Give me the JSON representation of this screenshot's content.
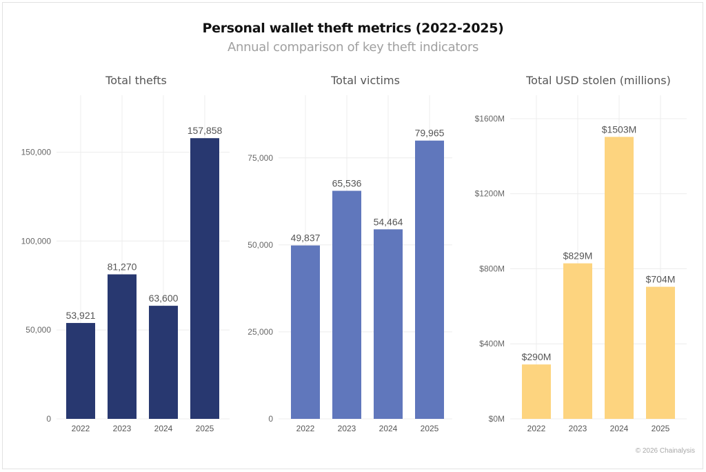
{
  "title": "Personal wallet theft metrics (2022-2025)",
  "subtitle": "Annual comparison of key theft indicators",
  "credit": "© 2026 Chainalysis",
  "chart_data": [
    {
      "type": "bar",
      "title": "Total thefts",
      "categories": [
        "2022",
        "2023",
        "2024",
        "2025"
      ],
      "values": [
        53921,
        81270,
        63600,
        157858
      ],
      "data_labels": [
        "53,921",
        "81,270",
        "63,600",
        "157,858"
      ],
      "ylim": [
        0,
        182000
      ],
      "yticks": [
        0,
        50000,
        100000,
        150000
      ],
      "ytick_labels": [
        "0",
        "50,000",
        "100,000",
        "150,000"
      ],
      "color": "#283870",
      "grid": true
    },
    {
      "type": "bar",
      "title": "Total victims",
      "categories": [
        "2022",
        "2023",
        "2024",
        "2025"
      ],
      "values": [
        49837,
        65536,
        54464,
        79965
      ],
      "data_labels": [
        "49,837",
        "65,536",
        "54,464",
        "79,965"
      ],
      "ylim": [
        0,
        93000
      ],
      "yticks": [
        0,
        25000,
        50000,
        75000
      ],
      "ytick_labels": [
        "0",
        "25,000",
        "50,000",
        "75,000"
      ],
      "color": "#6077bc",
      "grid": true
    },
    {
      "type": "bar",
      "title": "Total USD stolen (millions)",
      "categories": [
        "2022",
        "2023",
        "2024",
        "2025"
      ],
      "values": [
        290,
        829,
        1503,
        704
      ],
      "data_labels": [
        "$290M",
        "$829M",
        "$1503M",
        "$704M"
      ],
      "ylim": [
        0,
        1725
      ],
      "yticks": [
        0,
        400,
        800,
        1200,
        1600
      ],
      "ytick_labels": [
        "$0M",
        "$400M",
        "$800M",
        "$1200M",
        "$1600M"
      ],
      "color": "#fdd47f",
      "grid": true
    }
  ]
}
